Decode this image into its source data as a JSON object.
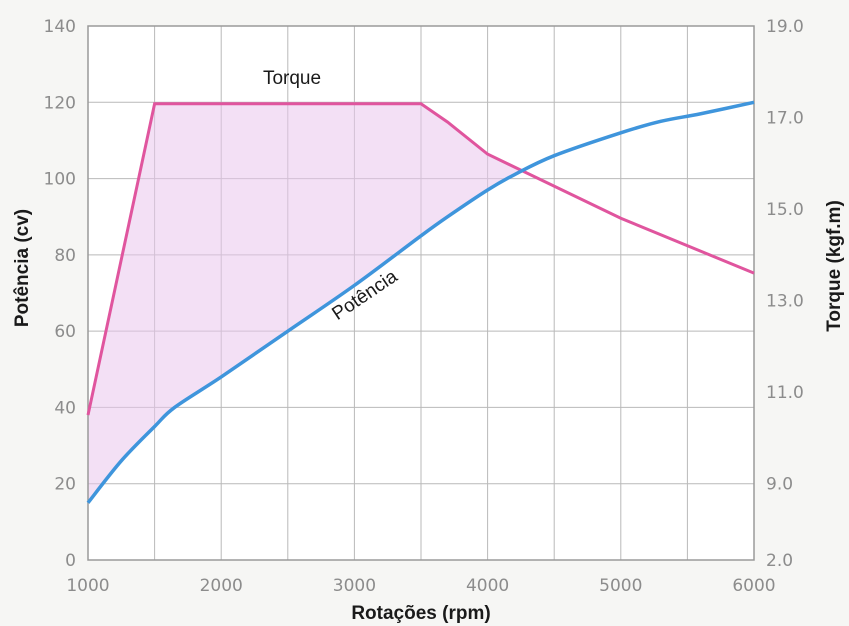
{
  "chart_data": {
    "type": "line",
    "x": [
      1000,
      1500,
      1650,
      2000,
      2500,
      3000,
      3500,
      3700,
      4000,
      4200,
      4500,
      5000,
      5300,
      5600,
      6000
    ],
    "xlabel": "Rotações (rpm)",
    "xlim": [
      1000,
      6000
    ],
    "xticks": [
      1000,
      2000,
      3000,
      4000,
      5000,
      6000
    ],
    "xtick_labels": [
      "1000",
      "2000",
      "3000",
      "4000",
      "5000",
      "6000"
    ],
    "ylabel_left": "Potência (cv)",
    "ylim_left": [
      0,
      140
    ],
    "yticks_left": [
      0,
      20,
      40,
      60,
      80,
      100,
      120,
      140
    ],
    "ytick_labels_left": [
      "0",
      "20",
      "40",
      "60",
      "80",
      "100",
      "120",
      "140"
    ],
    "ylabel_right": "Torque (kgf.m)",
    "ytick_labels_right": [
      "2.0",
      "9.0",
      "11.0",
      "13.0",
      "15.0",
      "17.0",
      "19.0"
    ],
    "grid": true,
    "shaded_region": "between Torque and Potência",
    "series": [
      {
        "name": "Torque",
        "color": "#e0559e",
        "axis": "right",
        "x": [
          1000,
          1500,
          3500,
          3700,
          4000,
          5000,
          6000
        ],
        "values": [
          10.5,
          17.3,
          17.3,
          16.9,
          16.2,
          14.8,
          13.6
        ]
      },
      {
        "name": "Potência",
        "color": "#3f95dc",
        "axis": "left",
        "x": [
          1000,
          1250,
          1500,
          1650,
          2000,
          2500,
          3000,
          3500,
          3700,
          4000,
          4200,
          4500,
          5000,
          5300,
          5600,
          6000
        ],
        "values": [
          15,
          26,
          35,
          40,
          48,
          60,
          72,
          85,
          90,
          97,
          101,
          106,
          112,
          115,
          117,
          120
        ]
      }
    ]
  }
}
